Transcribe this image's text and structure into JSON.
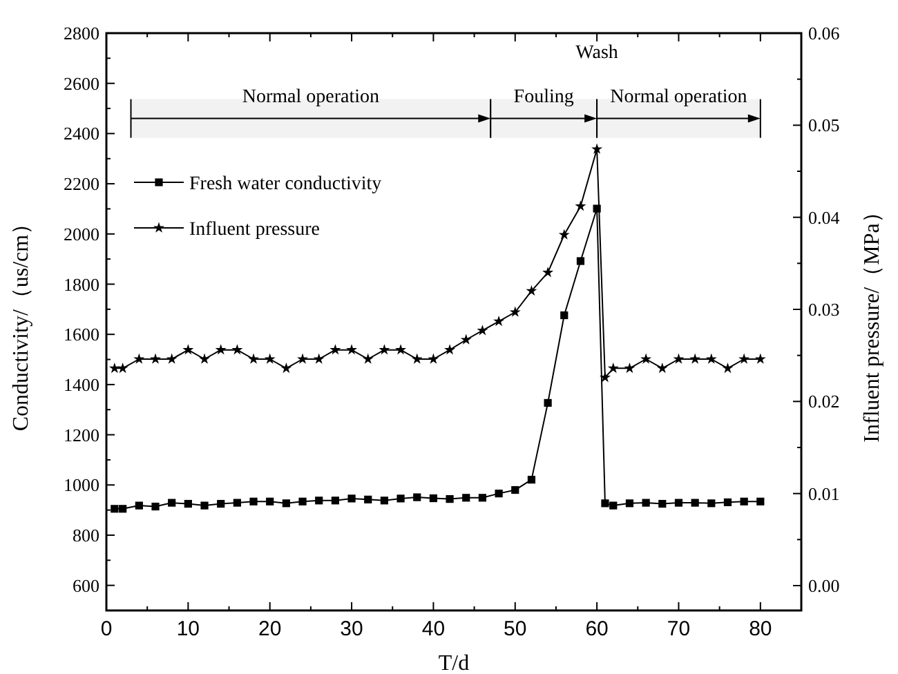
{
  "chart_data": {
    "type": "line",
    "xlabel": "T/d",
    "ylabel": "Conductivity/（us/cm）",
    "y2label": "Influent pressure/（MPa）",
    "x": [
      1,
      2,
      4,
      6,
      8,
      10,
      12,
      14,
      16,
      18,
      20,
      22,
      24,
      26,
      28,
      30,
      32,
      34,
      36,
      38,
      40,
      42,
      44,
      46,
      48,
      50,
      52,
      54,
      56,
      58,
      60,
      61,
      62,
      64,
      66,
      68,
      70,
      72,
      74,
      76,
      78,
      80
    ],
    "xlim": [
      0,
      85
    ],
    "xticks": [
      0,
      {
        "value": 5,
        "label": null
      },
      10,
      {
        "value": 15,
        "label": null
      },
      20,
      {
        "value": 25,
        "label": null
      },
      30,
      {
        "value": 35,
        "label": null
      },
      40,
      {
        "value": 45,
        "label": null
      },
      50,
      {
        "value": 55,
        "label": null
      },
      60,
      {
        "value": 65,
        "label": null
      },
      70,
      {
        "value": 75,
        "label": null
      },
      80,
      {
        "value": 85,
        "label": null
      }
    ],
    "ylim": [
      500,
      2800
    ],
    "yticks": [
      600,
      {
        "value": 700,
        "label": null
      },
      800,
      {
        "value": 900,
        "label": null
      },
      1000,
      {
        "value": 1100,
        "label": null
      },
      1200,
      {
        "value": 1300,
        "label": null
      },
      1400,
      {
        "value": 1500,
        "label": null
      },
      1600,
      {
        "value": 1700,
        "label": null
      },
      1800,
      {
        "value": 1900,
        "label": null
      },
      2000,
      {
        "value": 2100,
        "label": null
      },
      2200,
      {
        "value": 2300,
        "label": null
      },
      2400,
      {
        "value": 2500,
        "label": null
      },
      2600,
      {
        "value": 2700,
        "label": null
      },
      2800
    ],
    "y2lim": [
      -0.0027,
      0.06
    ],
    "y2ticks": [
      {
        "value": 0,
        "label": "0.00"
      },
      {
        "value": 0.005,
        "label": null
      },
      {
        "value": 0.01,
        "label": "0.01"
      },
      {
        "value": 0.015,
        "label": null
      },
      {
        "value": 0.02,
        "label": "0.02"
      },
      {
        "value": 0.025,
        "label": null
      },
      {
        "value": 0.03,
        "label": "0.03"
      },
      {
        "value": 0.035,
        "label": null
      },
      {
        "value": 0.04,
        "label": "0.04"
      },
      {
        "value": 0.045,
        "label": null
      },
      {
        "value": 0.05,
        "label": "0.05"
      },
      {
        "value": 0.055,
        "label": null
      },
      {
        "value": 0.06,
        "label": "0.06"
      }
    ],
    "series": [
      {
        "name": "Fresh water conductivity",
        "color": "#000000",
        "marker": "square",
        "values": [
          905,
          905,
          918,
          914,
          929,
          925,
          918,
          925,
          929,
          934,
          934,
          927,
          934,
          938,
          938,
          946,
          942,
          938,
          946,
          951,
          947,
          944,
          949,
          949,
          966,
          980,
          1021,
          1327,
          1676,
          1892,
          2101,
          927,
          918,
          927,
          929,
          925,
          929,
          929,
          927,
          931,
          934,
          934
        ]
      },
      {
        "name": "Influent pressure",
        "color": "#000000",
        "marker": "star",
        "axis": "y2",
        "values": [
          0.0236,
          0.0236,
          0.0246,
          0.0246,
          0.0246,
          0.0256,
          0.0246,
          0.0256,
          0.0256,
          0.0246,
          0.0246,
          0.0236,
          0.0246,
          0.0246,
          0.0256,
          0.0256,
          0.0246,
          0.0256,
          0.0256,
          0.0246,
          0.0246,
          0.0256,
          0.0267,
          0.0277,
          0.0287,
          0.0297,
          0.032,
          0.034,
          0.0381,
          0.0412,
          0.0474,
          0.0226,
          0.0236,
          0.0236,
          0.0246,
          0.0236,
          0.0246,
          0.0246,
          0.0246,
          0.0236,
          0.0246,
          0.0246
        ]
      }
    ],
    "bands": [
      {
        "axis": "x",
        "from": 3,
        "to": 47,
        "label": "Normal operation"
      },
      {
        "axis": "x",
        "from": 47,
        "to": 60,
        "label": "Fouling"
      },
      {
        "axis": "x",
        "from": 60,
        "to": 80,
        "label": "Normal operation"
      }
    ],
    "annotations": [
      "Wash"
    ],
    "legend": "top left",
    "grid": false,
    "line_style": "solid"
  }
}
